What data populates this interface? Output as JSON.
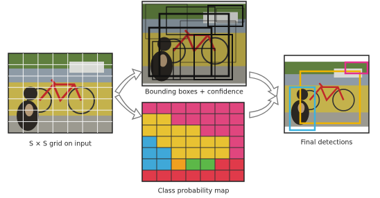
{
  "panels": {
    "input": {
      "label": "S × S grid on input"
    },
    "boxes": {
      "label": "Bounding boxes + confidence"
    },
    "class_map": {
      "label": "Class probability map"
    },
    "detections": {
      "label": "Final detections"
    }
  }
}
